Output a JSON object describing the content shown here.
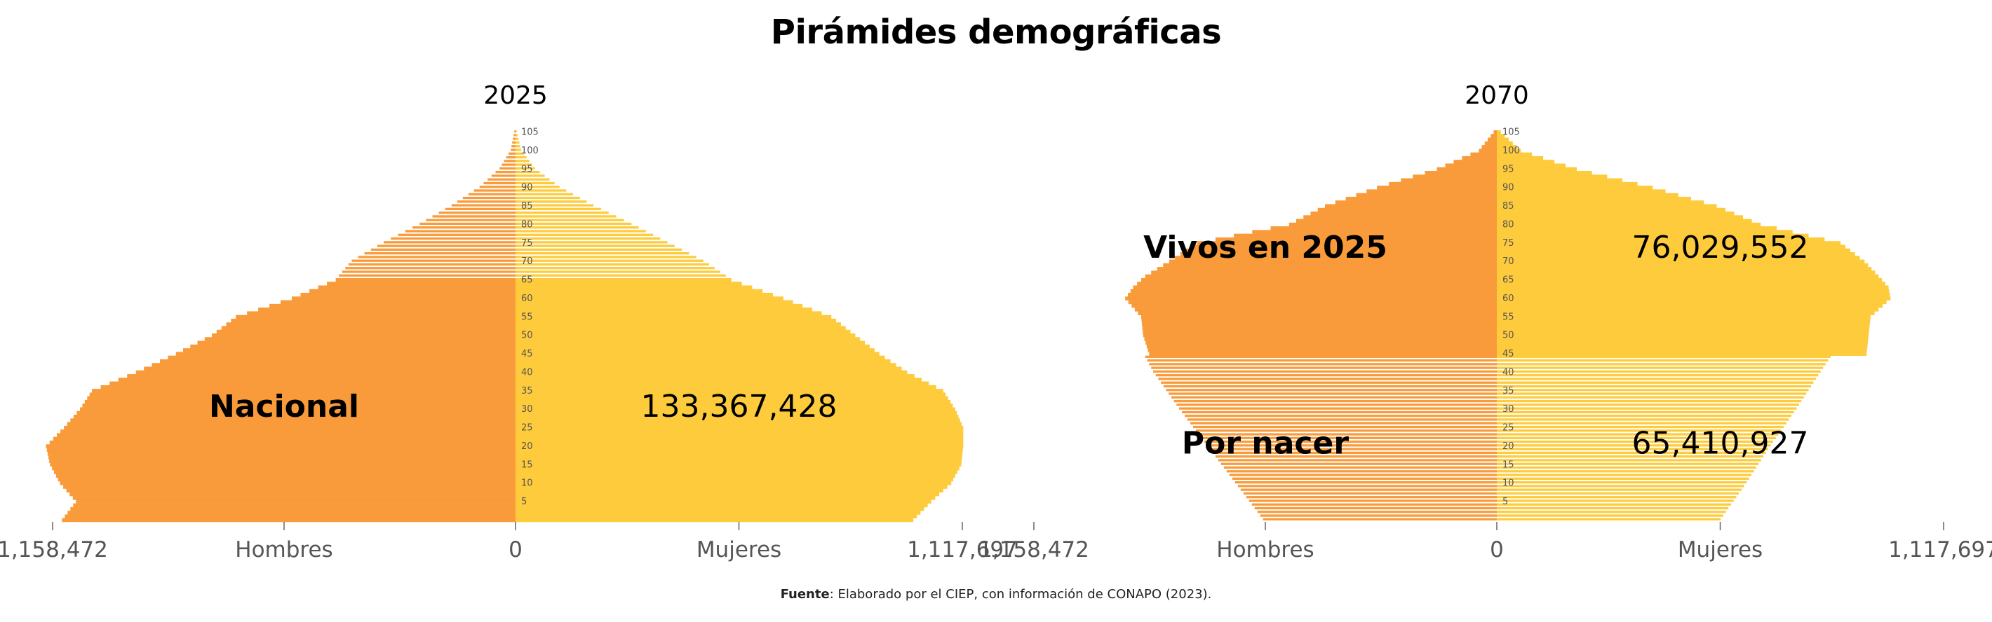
{
  "title": "Pirámides demográficas",
  "source": {
    "label": "Fuente",
    "text": ": Elaborado por el CIEP, con información de CONAPO (2023)."
  },
  "colors": {
    "men": "#f99b3a",
    "women": "#fdcb3b",
    "line": "#ffffff"
  },
  "chart_data": [
    {
      "type": "bar",
      "subtitle": "2025",
      "orientation": "horizontal-pyramid",
      "age_ticks": [
        5,
        10,
        15,
        20,
        25,
        30,
        35,
        40,
        45,
        50,
        55,
        60,
        65,
        70,
        75,
        80,
        85,
        90,
        95,
        100,
        105
      ],
      "x_tick_labels": [
        "1,158,472",
        "Hombres",
        "0",
        "Mujeres",
        "1,117,697"
      ],
      "xlim_men": 1158472,
      "xlim_women": 1117697,
      "men_profile": [
        [
          0,
          1135000
        ],
        [
          5,
          1100000
        ],
        [
          10,
          1140000
        ],
        [
          15,
          1165000
        ],
        [
          20,
          1175000
        ],
        [
          25,
          1130000
        ],
        [
          30,
          1090000
        ],
        [
          35,
          1060000
        ],
        [
          40,
          950000
        ],
        [
          45,
          850000
        ],
        [
          50,
          760000
        ],
        [
          55,
          700000
        ],
        [
          60,
          560000
        ],
        [
          65,
          450000
        ],
        [
          70,
          410000
        ],
        [
          75,
          330000
        ],
        [
          80,
          240000
        ],
        [
          85,
          160000
        ],
        [
          90,
          90000
        ],
        [
          95,
          40000
        ],
        [
          100,
          12000
        ],
        [
          105,
          3000
        ]
      ],
      "women_profile": [
        [
          0,
          995000
        ],
        [
          5,
          1040000
        ],
        [
          10,
          1090000
        ],
        [
          15,
          1115000
        ],
        [
          20,
          1120000
        ],
        [
          25,
          1120000
        ],
        [
          30,
          1100000
        ],
        [
          35,
          1070000
        ],
        [
          40,
          980000
        ],
        [
          45,
          910000
        ],
        [
          50,
          850000
        ],
        [
          55,
          790000
        ],
        [
          60,
          670000
        ],
        [
          65,
          540000
        ],
        [
          70,
          470000
        ],
        [
          75,
          380000
        ],
        [
          80,
          290000
        ],
        [
          85,
          195000
        ],
        [
          90,
          110000
        ],
        [
          95,
          48000
        ],
        [
          100,
          14000
        ],
        [
          105,
          3000
        ]
      ],
      "dashed_age_min": 66,
      "dashed_age_max": 106,
      "labels": [
        {
          "text": "Nacional",
          "bold": true,
          "side": "men",
          "age": 31
        },
        {
          "text": "133,367,428",
          "bold": false,
          "side": "women",
          "age": 31
        }
      ]
    },
    {
      "type": "bar",
      "subtitle": "2070",
      "orientation": "horizontal-pyramid",
      "age_ticks": [
        5,
        10,
        15,
        20,
        25,
        30,
        35,
        40,
        45,
        50,
        55,
        60,
        65,
        70,
        75,
        80,
        85,
        90,
        95,
        100,
        105
      ],
      "x_tick_labels": [
        "1,158,472",
        "Hombres",
        "0",
        "Mujeres",
        "1,117,697"
      ],
      "xlim_men": 1158472,
      "xlim_women": 1117697,
      "men_profile": [
        [
          0,
          585000
        ],
        [
          10,
          655000
        ],
        [
          20,
          725000
        ],
        [
          30,
          795000
        ],
        [
          40,
          860000
        ],
        [
          44,
          880000
        ],
        [
          45,
          870000
        ],
        [
          50,
          885000
        ],
        [
          55,
          890000
        ],
        [
          60,
          930000
        ],
        [
          63,
          910000
        ],
        [
          66,
          880000
        ],
        [
          70,
          820000
        ],
        [
          75,
          750000
        ],
        [
          80,
          520000
        ],
        [
          85,
          430000
        ],
        [
          90,
          300000
        ],
        [
          95,
          150000
        ],
        [
          100,
          45000
        ],
        [
          105,
          8000
        ]
      ],
      "women_profile": [
        [
          0,
          560000
        ],
        [
          10,
          625000
        ],
        [
          20,
          685000
        ],
        [
          30,
          750000
        ],
        [
          40,
          810000
        ],
        [
          44,
          835000
        ],
        [
          45,
          925000
        ],
        [
          50,
          930000
        ],
        [
          55,
          935000
        ],
        [
          60,
          985000
        ],
        [
          63,
          980000
        ],
        [
          66,
          955000
        ],
        [
          70,
          920000
        ],
        [
          75,
          860000
        ],
        [
          80,
          660000
        ],
        [
          85,
          550000
        ],
        [
          90,
          390000
        ],
        [
          95,
          200000
        ],
        [
          100,
          60000
        ],
        [
          105,
          10000
        ]
      ],
      "dashed_age_min": -1,
      "dashed_age_max": 44,
      "labels": [
        {
          "text": "Vivos en 2025",
          "bold": true,
          "side": "men",
          "age": 74
        },
        {
          "text": "76,029,552",
          "bold": false,
          "side": "women",
          "age": 74
        },
        {
          "text": "Por nacer",
          "bold": true,
          "side": "men",
          "age": 21
        },
        {
          "text": "65,410,927",
          "bold": false,
          "side": "women",
          "age": 21
        }
      ]
    }
  ]
}
